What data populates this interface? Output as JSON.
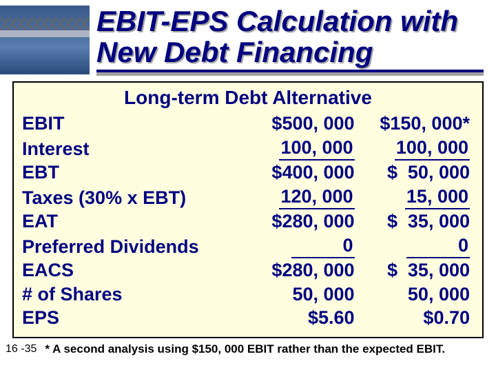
{
  "title_line1": "EBIT-EPS Calculation with",
  "title_line2": "New Debt Financing",
  "panel_title": "Long-term Debt Alternative",
  "rows": {
    "ebit": {
      "label": "EBIT",
      "c1": "$500, 000",
      "c2": "$150, 000",
      "c2_star": "*"
    },
    "interest": {
      "label": "Interest",
      "c1": "100, 000",
      "c2": "100, 000"
    },
    "ebt": {
      "label": "EBT",
      "c1": "$400, 000",
      "c2_ds": "$",
      "c2_v": "50, 000"
    },
    "taxes": {
      "label": "Taxes (30% x EBT)",
      "c1": "120, 000",
      "c2": "15, 000"
    },
    "eat": {
      "label": "EAT",
      "c1": "$280, 000",
      "c2_ds": "$",
      "c2_v": "35, 000"
    },
    "prefdiv": {
      "label": "Preferred Dividends",
      "c1": "0",
      "c2": "0"
    },
    "eacs": {
      "label": "EACS",
      "c1": "$280, 000",
      "c2_ds": "$",
      "c2_v": "35, 000"
    },
    "shares": {
      "label": "# of Shares",
      "c1": "50, 000",
      "c2": "50, 000"
    },
    "eps": {
      "label": "EPS",
      "c1": "$5.60",
      "c2": "$0.70"
    }
  },
  "page_number": "16 -35",
  "footnote": "* A second analysis using $150, 000 EBIT rather than the expected EBIT.",
  "colors": {
    "title_color": "#000080",
    "panel_bg": "#ffffe0",
    "text_accent": "#000080",
    "shadow": "#a0a0a0"
  }
}
